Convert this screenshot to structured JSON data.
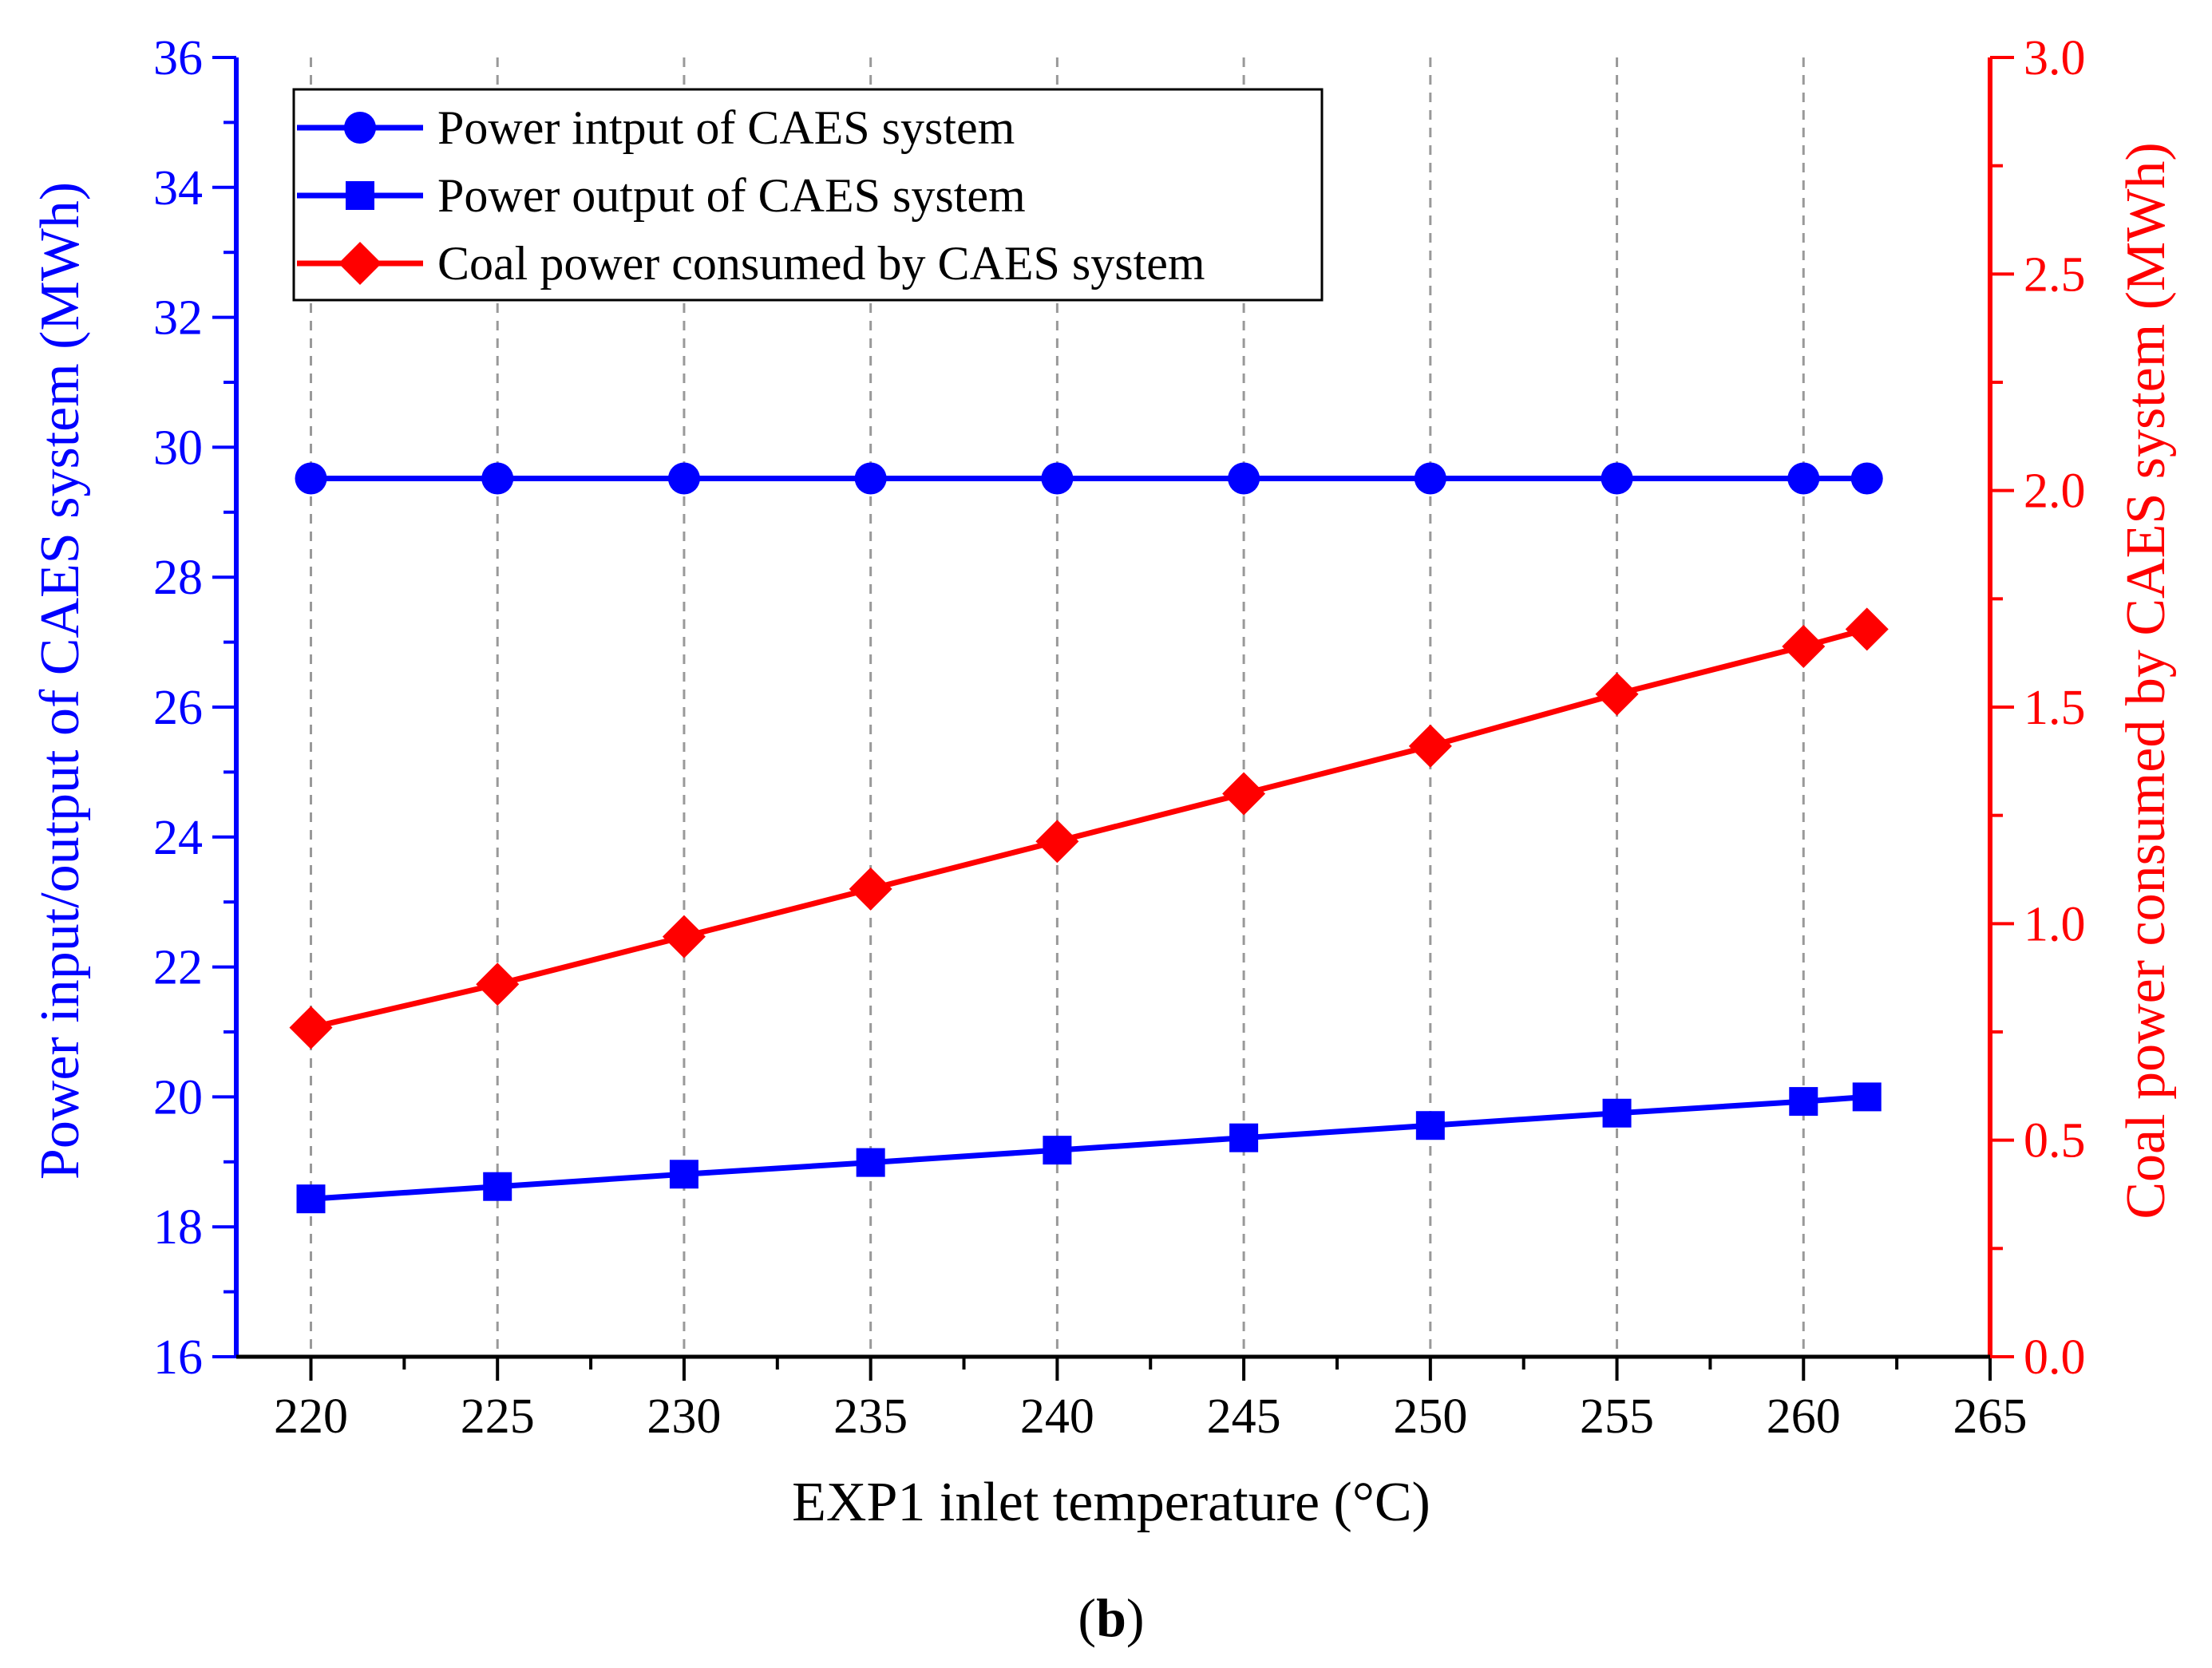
{
  "panel_label": "b",
  "colors": {
    "left_axis": "#0000ff",
    "right_axis": "#ff0000",
    "grid": "#999999",
    "axis_bottom": "#000000"
  },
  "chart_data": {
    "type": "line",
    "xlabel": "EXP1 inlet temperature (°C)",
    "ylabel_left": "Power input/output of CAES system (MWh)",
    "ylabel_right": "Coal power consumed by CAES system (MWh)",
    "xlim": [
      218,
      265
    ],
    "ylim_left": [
      16,
      36
    ],
    "ylim_right": [
      0.0,
      3.0
    ],
    "x_ticks": [
      "220",
      "225",
      "230",
      "235",
      "240",
      "245",
      "250",
      "255",
      "260",
      "265"
    ],
    "y_left_ticks": [
      "16",
      "18",
      "20",
      "22",
      "24",
      "26",
      "28",
      "30",
      "32",
      "34",
      "36"
    ],
    "y_right_ticks": [
      "0.0",
      "0.5",
      "1.0",
      "1.5",
      "2.0",
      "2.5",
      "3.0"
    ],
    "grid": "vertical dashed",
    "legend_position": "top-left",
    "x": [
      220,
      225,
      230,
      235,
      240,
      245,
      250,
      255,
      260,
      261.7
    ],
    "series": [
      {
        "name": "Power intput of CAES system",
        "axis": "left",
        "color": "#0000ff",
        "marker": "circle",
        "values": [
          29.52,
          29.52,
          29.52,
          29.52,
          29.52,
          29.52,
          29.52,
          29.52,
          29.52,
          29.52
        ]
      },
      {
        "name": "Power output of CAES system",
        "axis": "left",
        "color": "#0000ff",
        "marker": "square",
        "values": [
          18.43,
          18.62,
          18.81,
          18.99,
          19.18,
          19.37,
          19.56,
          19.75,
          19.93,
          20.0
        ]
      },
      {
        "name": "Coal power consumed by CAES system",
        "axis": "right",
        "color": "#ff0000",
        "marker": "diamond",
        "values": [
          0.76,
          0.86,
          0.97,
          1.08,
          1.19,
          1.3,
          1.41,
          1.53,
          1.64,
          1.68
        ]
      }
    ]
  }
}
